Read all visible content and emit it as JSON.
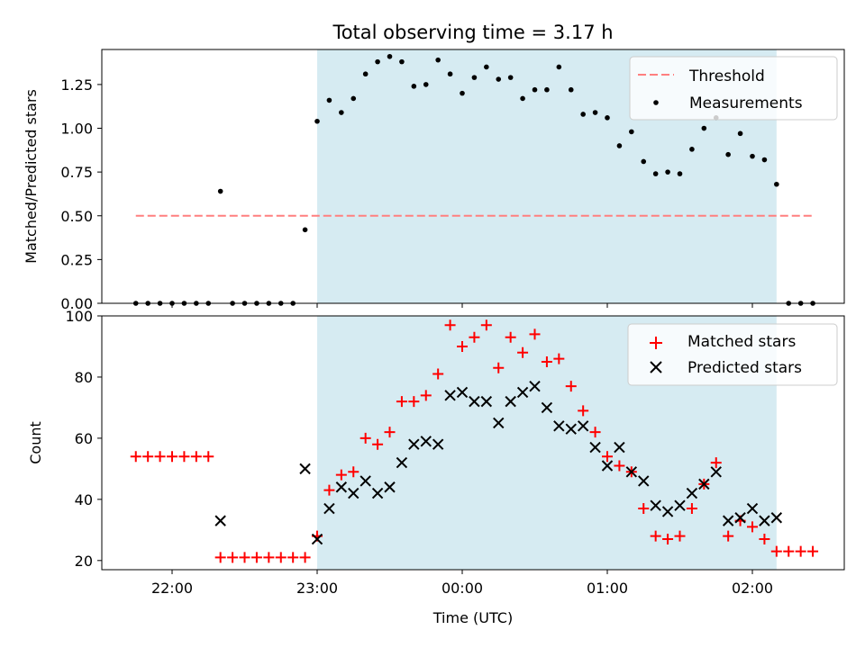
{
  "chart_data": [
    {
      "type": "scatter",
      "title": "Total observing time = 3.17 h",
      "xlabel": "",
      "ylabel": "Matched/Predicted stars",
      "ylim": [
        0,
        1.45
      ],
      "yticks": [
        "0.00",
        "0.25",
        "0.50",
        "0.75",
        "1.00",
        "1.25"
      ],
      "grid": false,
      "legend": "top-right",
      "shaded_interval": [
        "23:00",
        "02:10"
      ],
      "shade_color": "#add8e6",
      "threshold": {
        "name": "Threshold",
        "value": 0.5,
        "x_start": "21:45",
        "x_end": "02:25",
        "color": "#ff7f7f"
      },
      "series": [
        {
          "name": "Measurements",
          "color": "#000000",
          "points": [
            [
              "21:45",
              0
            ],
            [
              "21:50",
              0
            ],
            [
              "21:55",
              0
            ],
            [
              "22:00",
              0
            ],
            [
              "22:05",
              0
            ],
            [
              "22:10",
              0
            ],
            [
              "22:15",
              0
            ],
            [
              "22:20",
              0.64
            ],
            [
              "22:25",
              0
            ],
            [
              "22:30",
              0
            ],
            [
              "22:35",
              0
            ],
            [
              "22:40",
              0
            ],
            [
              "22:45",
              0
            ],
            [
              "22:50",
              0
            ],
            [
              "22:55",
              0.42
            ],
            [
              "23:00",
              1.04
            ],
            [
              "23:05",
              1.16
            ],
            [
              "23:10",
              1.09
            ],
            [
              "23:15",
              1.17
            ],
            [
              "23:20",
              1.31
            ],
            [
              "23:25",
              1.38
            ],
            [
              "23:30",
              1.41
            ],
            [
              "23:35",
              1.38
            ],
            [
              "23:40",
              1.24
            ],
            [
              "23:45",
              1.25
            ],
            [
              "23:50",
              1.39
            ],
            [
              "23:55",
              1.31
            ],
            [
              "00:00",
              1.2
            ],
            [
              "00:05",
              1.29
            ],
            [
              "00:10",
              1.35
            ],
            [
              "00:15",
              1.28
            ],
            [
              "00:20",
              1.29
            ],
            [
              "00:25",
              1.17
            ],
            [
              "00:30",
              1.22
            ],
            [
              "00:35",
              1.22
            ],
            [
              "00:40",
              1.35
            ],
            [
              "00:45",
              1.22
            ],
            [
              "00:50",
              1.08
            ],
            [
              "00:55",
              1.09
            ],
            [
              "01:00",
              1.06
            ],
            [
              "01:05",
              0.9
            ],
            [
              "01:10",
              0.98
            ],
            [
              "01:15",
              0.81
            ],
            [
              "01:20",
              0.74
            ],
            [
              "01:25",
              0.75
            ],
            [
              "01:30",
              0.74
            ],
            [
              "01:35",
              0.88
            ],
            [
              "01:40",
              1.0
            ],
            [
              "01:45",
              1.06
            ],
            [
              "01:50",
              0.85
            ],
            [
              "01:55",
              0.97
            ],
            [
              "02:00",
              0.84
            ],
            [
              "02:05",
              0.82
            ],
            [
              "02:10",
              0.68
            ],
            [
              "02:15",
              0
            ],
            [
              "02:20",
              0
            ],
            [
              "02:25",
              0
            ]
          ]
        }
      ]
    },
    {
      "type": "scatter",
      "title": "",
      "xlabel": "Time (UTC)",
      "ylabel": "Count",
      "xticks": [
        "22:00",
        "23:00",
        "00:00",
        "01:00",
        "02:00"
      ],
      "ylim": [
        17,
        100
      ],
      "yticks": [
        "20",
        "40",
        "60",
        "80",
        "100"
      ],
      "grid": false,
      "legend": "top-right",
      "shaded_interval": [
        "23:00",
        "02:10"
      ],
      "shade_color": "#add8e6",
      "series": [
        {
          "name": "Matched stars",
          "marker": "+",
          "color": "#ff0000",
          "points": [
            [
              "21:45",
              54
            ],
            [
              "21:50",
              54
            ],
            [
              "21:55",
              54
            ],
            [
              "22:00",
              54
            ],
            [
              "22:05",
              54
            ],
            [
              "22:10",
              54
            ],
            [
              "22:15",
              54
            ],
            [
              "22:20",
              21
            ],
            [
              "22:25",
              21
            ],
            [
              "22:30",
              21
            ],
            [
              "22:35",
              21
            ],
            [
              "22:40",
              21
            ],
            [
              "22:45",
              21
            ],
            [
              "22:50",
              21
            ],
            [
              "22:55",
              21
            ],
            [
              "23:00",
              28
            ],
            [
              "23:05",
              43
            ],
            [
              "23:10",
              48
            ],
            [
              "23:15",
              49
            ],
            [
              "23:20",
              60
            ],
            [
              "23:25",
              58
            ],
            [
              "23:30",
              62
            ],
            [
              "23:35",
              72
            ],
            [
              "23:40",
              72
            ],
            [
              "23:45",
              74
            ],
            [
              "23:50",
              81
            ],
            [
              "23:55",
              97
            ],
            [
              "00:00",
              90
            ],
            [
              "00:05",
              93
            ],
            [
              "00:10",
              97
            ],
            [
              "00:15",
              83
            ],
            [
              "00:20",
              93
            ],
            [
              "00:25",
              88
            ],
            [
              "00:30",
              94
            ],
            [
              "00:35",
              85
            ],
            [
              "00:40",
              86
            ],
            [
              "00:45",
              77
            ],
            [
              "00:50",
              69
            ],
            [
              "00:55",
              62
            ],
            [
              "01:00",
              54
            ],
            [
              "01:05",
              51
            ],
            [
              "01:10",
              49
            ],
            [
              "01:15",
              37
            ],
            [
              "01:20",
              28
            ],
            [
              "01:25",
              27
            ],
            [
              "01:30",
              28
            ],
            [
              "01:35",
              37
            ],
            [
              "01:40",
              45
            ],
            [
              "01:45",
              52
            ],
            [
              "01:50",
              28
            ],
            [
              "01:55",
              33
            ],
            [
              "02:00",
              31
            ],
            [
              "02:05",
              27
            ],
            [
              "02:10",
              23
            ],
            [
              "02:15",
              23
            ],
            [
              "02:20",
              23
            ],
            [
              "02:25",
              23
            ]
          ]
        },
        {
          "name": "Predicted stars",
          "marker": "x",
          "color": "#000000",
          "points": [
            [
              "22:20",
              33
            ],
            [
              "22:55",
              50
            ],
            [
              "23:00",
              27
            ],
            [
              "23:05",
              37
            ],
            [
              "23:10",
              44
            ],
            [
              "23:15",
              42
            ],
            [
              "23:20",
              46
            ],
            [
              "23:25",
              42
            ],
            [
              "23:30",
              44
            ],
            [
              "23:35",
              52
            ],
            [
              "23:40",
              58
            ],
            [
              "23:45",
              59
            ],
            [
              "23:50",
              58
            ],
            [
              "23:55",
              74
            ],
            [
              "00:00",
              75
            ],
            [
              "00:05",
              72
            ],
            [
              "00:10",
              72
            ],
            [
              "00:15",
              65
            ],
            [
              "00:20",
              72
            ],
            [
              "00:25",
              75
            ],
            [
              "00:30",
              77
            ],
            [
              "00:35",
              70
            ],
            [
              "00:40",
              64
            ],
            [
              "00:45",
              63
            ],
            [
              "00:50",
              64
            ],
            [
              "00:55",
              57
            ],
            [
              "01:00",
              51
            ],
            [
              "01:05",
              57
            ],
            [
              "01:10",
              49
            ],
            [
              "01:15",
              46
            ],
            [
              "01:20",
              38
            ],
            [
              "01:25",
              36
            ],
            [
              "01:30",
              38
            ],
            [
              "01:35",
              42
            ],
            [
              "01:40",
              45
            ],
            [
              "01:45",
              49
            ],
            [
              "01:50",
              33
            ],
            [
              "01:55",
              34
            ],
            [
              "02:00",
              37
            ],
            [
              "02:05",
              33
            ],
            [
              "02:10",
              34
            ]
          ]
        }
      ]
    }
  ]
}
